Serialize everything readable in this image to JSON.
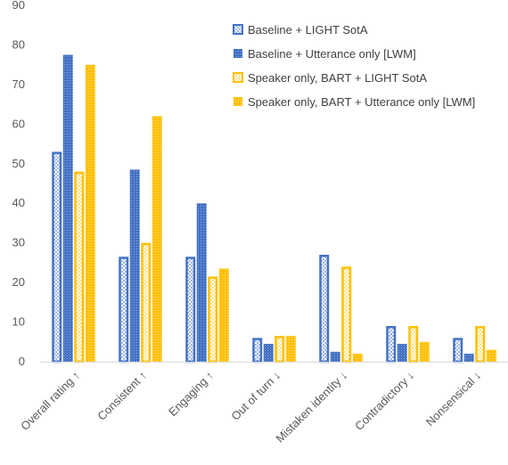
{
  "chart_data": {
    "type": "bar",
    "categories": [
      "Overall rating ↑",
      "Consistent ↑",
      "Engaging ↑",
      "Out of turn ↓",
      "Mistaken identity ↓",
      "Contradictory ↓",
      "Nonsensical ↓"
    ],
    "series": [
      {
        "name": "Baseline + LIGHT SotA",
        "values": [
          53,
          26.5,
          26.5,
          6,
          27,
          9,
          6
        ],
        "color": "#4472C4",
        "style": "outline-hatched"
      },
      {
        "name": "Baseline + Utterance only [LWM]",
        "values": [
          77.5,
          48.5,
          40,
          4.5,
          2.5,
          4.5,
          2
        ],
        "color": "#4472C4",
        "style": "solid-dotted"
      },
      {
        "name": "Speaker only, BART + LIGHT SotA",
        "values": [
          48,
          30,
          21.5,
          6.5,
          24,
          9,
          9
        ],
        "color": "#FFC000",
        "style": "outline-hatched"
      },
      {
        "name": "Speaker only, BART + Utterance only [LWM]",
        "values": [
          75,
          62,
          23.5,
          6.5,
          2,
          5,
          3
        ],
        "color": "#FFC000",
        "style": "solid-dotted"
      }
    ],
    "y_ticks": [
      0,
      10,
      20,
      30,
      40,
      50,
      60,
      70,
      80,
      90
    ],
    "ylim": [
      0,
      90
    ],
    "grid": false,
    "legend_position": "top-right"
  }
}
